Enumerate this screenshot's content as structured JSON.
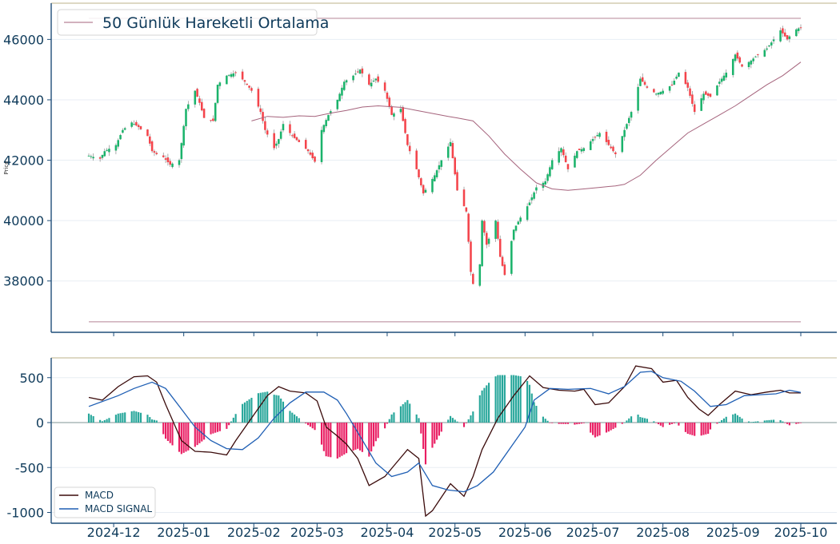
{
  "chart_data": [
    {
      "type": "candlestick",
      "ylabel": "Price",
      "ylim": [
        36300,
        47200
      ],
      "yticks": [
        38000,
        40000,
        42000,
        44000,
        46000
      ],
      "legend": {
        "placement": "top-left",
        "entries": [
          "50 Günlük Hareketli Ortalama"
        ]
      },
      "grid": true,
      "start_date": "2024-11-20",
      "end_date": "2025-10-01",
      "close_path": [
        [
          "2024-11-20",
          42150
        ],
        [
          "2024-11-25",
          42050
        ],
        [
          "2024-11-27",
          42300
        ],
        [
          "2024-12-02",
          42500
        ],
        [
          "2024-12-05",
          43000
        ],
        [
          "2024-12-09",
          43250
        ],
        [
          "2024-12-12",
          43100
        ],
        [
          "2024-12-16",
          42800
        ],
        [
          "2024-12-18",
          42300
        ],
        [
          "2024-12-20",
          42200
        ],
        [
          "2024-12-23",
          42100
        ],
        [
          "2024-12-26",
          41850
        ],
        [
          "2024-12-30",
          42000
        ],
        [
          "2025-01-02",
          43700
        ],
        [
          "2025-01-06",
          44300
        ],
        [
          "2025-01-08",
          43900
        ],
        [
          "2025-01-10",
          43400
        ],
        [
          "2025-01-14",
          43300
        ],
        [
          "2025-01-16",
          44500
        ],
        [
          "2025-01-20",
          44800
        ],
        [
          "2025-01-24",
          44900
        ],
        [
          "2025-01-28",
          44600
        ],
        [
          "2025-01-31",
          44300
        ],
        [
          "2025-02-04",
          43600
        ],
        [
          "2025-02-06",
          43000
        ],
        [
          "2025-02-10",
          42400
        ],
        [
          "2025-02-12",
          42700
        ],
        [
          "2025-02-14",
          43200
        ],
        [
          "2025-02-18",
          42800
        ],
        [
          "2025-02-21",
          42600
        ],
        [
          "2025-02-25",
          42300
        ],
        [
          "2025-02-28",
          41950
        ],
        [
          "2025-03-03",
          43000
        ],
        [
          "2025-03-06",
          43500
        ],
        [
          "2025-03-10",
          44000
        ],
        [
          "2025-03-13",
          44600
        ],
        [
          "2025-03-17",
          44800
        ],
        [
          "2025-03-20",
          45000
        ],
        [
          "2025-03-24",
          44500
        ],
        [
          "2025-03-27",
          44700
        ],
        [
          "2025-03-31",
          44300
        ],
        [
          "2025-04-03",
          43500
        ],
        [
          "2025-04-07",
          43700
        ],
        [
          "2025-04-10",
          42500
        ],
        [
          "2025-04-14",
          41700
        ],
        [
          "2025-04-17",
          40900
        ],
        [
          "2025-04-22",
          41500
        ],
        [
          "2025-04-25",
          42000
        ],
        [
          "2025-04-29",
          42600
        ],
        [
          "2025-05-02",
          41000
        ],
        [
          "2025-05-06",
          40300
        ],
        [
          "2025-05-08",
          38300
        ],
        [
          "2025-05-11",
          37100
        ],
        [
          "2025-05-13",
          40000
        ],
        [
          "2025-05-15",
          39200
        ],
        [
          "2025-05-19",
          40000
        ],
        [
          "2025-05-21",
          38800
        ],
        [
          "2025-05-23",
          38200
        ],
        [
          "2025-05-27",
          39700
        ],
        [
          "2025-05-30",
          40100
        ],
        [
          "2025-06-03",
          40600
        ],
        [
          "2025-06-06",
          41100
        ],
        [
          "2025-06-10",
          41300
        ],
        [
          "2025-06-13",
          42000
        ],
        [
          "2025-06-17",
          42400
        ],
        [
          "2025-06-20",
          41700
        ],
        [
          "2025-06-24",
          42300
        ],
        [
          "2025-06-27",
          42400
        ],
        [
          "2025-07-01",
          42700
        ],
        [
          "2025-07-04",
          42900
        ],
        [
          "2025-07-08",
          42500
        ],
        [
          "2025-07-11",
          42200
        ],
        [
          "2025-07-15",
          43000
        ],
        [
          "2025-07-18",
          43600
        ],
        [
          "2025-07-22",
          44700
        ],
        [
          "2025-07-25",
          44400
        ],
        [
          "2025-07-29",
          44200
        ],
        [
          "2025-08-01",
          44300
        ],
        [
          "2025-08-05",
          44500
        ],
        [
          "2025-08-08",
          44900
        ],
        [
          "2025-08-12",
          44400
        ],
        [
          "2025-08-15",
          43600
        ],
        [
          "2025-08-19",
          44200
        ],
        [
          "2025-08-22",
          44100
        ],
        [
          "2025-08-26",
          44600
        ],
        [
          "2025-08-29",
          44900
        ],
        [
          "2025-09-02",
          45500
        ],
        [
          "2025-09-05",
          45100
        ],
        [
          "2025-09-09",
          45300
        ],
        [
          "2025-09-12",
          45500
        ],
        [
          "2025-09-16",
          45700
        ],
        [
          "2025-09-19",
          46000
        ],
        [
          "2025-09-22",
          46300
        ],
        [
          "2025-09-25",
          46000
        ],
        [
          "2025-09-28",
          46300
        ],
        [
          "2025-10-01",
          46400
        ]
      ],
      "sma50_path": [
        [
          "2025-01-31",
          43300
        ],
        [
          "2025-02-07",
          43450
        ],
        [
          "2025-02-14",
          43420
        ],
        [
          "2025-02-21",
          43470
        ],
        [
          "2025-02-28",
          43450
        ],
        [
          "2025-03-07",
          43560
        ],
        [
          "2025-03-14",
          43650
        ],
        [
          "2025-03-21",
          43760
        ],
        [
          "2025-03-28",
          43800
        ],
        [
          "2025-04-07",
          43750
        ],
        [
          "2025-04-14",
          43650
        ],
        [
          "2025-04-21",
          43550
        ],
        [
          "2025-04-28",
          43450
        ],
        [
          "2025-05-02",
          43400
        ],
        [
          "2025-05-09",
          43300
        ],
        [
          "2025-05-16",
          42800
        ],
        [
          "2025-05-23",
          42200
        ],
        [
          "2025-05-30",
          41700
        ],
        [
          "2025-06-06",
          41250
        ],
        [
          "2025-06-13",
          41050
        ],
        [
          "2025-06-20",
          41000
        ],
        [
          "2025-06-27",
          41050
        ],
        [
          "2025-07-04",
          41100
        ],
        [
          "2025-07-11",
          41150
        ],
        [
          "2025-07-15",
          41200
        ],
        [
          "2025-07-22",
          41500
        ],
        [
          "2025-07-29",
          42000
        ],
        [
          "2025-08-05",
          42450
        ],
        [
          "2025-08-12",
          42900
        ],
        [
          "2025-08-19",
          43200
        ],
        [
          "2025-08-26",
          43500
        ],
        [
          "2025-09-02",
          43800
        ],
        [
          "2025-09-09",
          44150
        ],
        [
          "2025-09-16",
          44500
        ],
        [
          "2025-09-23",
          44800
        ],
        [
          "2025-10-01",
          45250
        ]
      ],
      "hlines": [
        46700,
        36650
      ]
    },
    {
      "type": "line+bar",
      "ylim": [
        -1120,
        720
      ],
      "yticks": [
        -1000,
        -500,
        0,
        500
      ],
      "xticks": [
        "2024-12",
        "2025-01",
        "2025-02",
        "2025-03",
        "2025-04",
        "2025-05",
        "2025-06",
        "2025-07",
        "2025-08",
        "2025-09",
        "2025-10"
      ],
      "legend": {
        "placement": "bottom-left",
        "entries": [
          "MACD",
          "MACD SIGNAL"
        ]
      },
      "grid": true,
      "series": [
        {
          "name": "MACD",
          "color": "#3b0b0b",
          "path": [
            [
              "2024-11-20",
              280
            ],
            [
              "2024-11-26",
              250
            ],
            [
              "2024-12-03",
              400
            ],
            [
              "2024-12-10",
              510
            ],
            [
              "2024-12-16",
              520
            ],
            [
              "2024-12-20",
              450
            ],
            [
              "2024-12-24",
              200
            ],
            [
              "2024-12-31",
              -200
            ],
            [
              "2025-01-06",
              -320
            ],
            [
              "2025-01-13",
              -330
            ],
            [
              "2025-01-20",
              -360
            ],
            [
              "2025-01-24",
              -200
            ],
            [
              "2025-01-31",
              50
            ],
            [
              "2025-02-07",
              300
            ],
            [
              "2025-02-12",
              400
            ],
            [
              "2025-02-17",
              350
            ],
            [
              "2025-02-24",
              330
            ],
            [
              "2025-03-01",
              240
            ],
            [
              "2025-03-05",
              -50
            ],
            [
              "2025-03-10",
              -150
            ],
            [
              "2025-03-14",
              -240
            ],
            [
              "2025-03-19",
              -400
            ],
            [
              "2025-03-24",
              -700
            ],
            [
              "2025-03-31",
              -600
            ],
            [
              "2025-04-04",
              -480
            ],
            [
              "2025-04-10",
              -300
            ],
            [
              "2025-04-15",
              -400
            ],
            [
              "2025-04-18",
              -1040
            ],
            [
              "2025-04-21",
              -980
            ],
            [
              "2025-04-25",
              -830
            ],
            [
              "2025-04-29",
              -680
            ],
            [
              "2025-05-05",
              -820
            ],
            [
              "2025-05-09",
              -600
            ],
            [
              "2025-05-13",
              -300
            ],
            [
              "2025-05-20",
              50
            ],
            [
              "2025-05-27",
              300
            ],
            [
              "2025-06-03",
              520
            ],
            [
              "2025-06-09",
              390
            ],
            [
              "2025-06-16",
              360
            ],
            [
              "2025-06-23",
              350
            ],
            [
              "2025-06-27",
              370
            ],
            [
              "2025-07-02",
              200
            ],
            [
              "2025-07-08",
              220
            ],
            [
              "2025-07-15",
              400
            ],
            [
              "2025-07-20",
              630
            ],
            [
              "2025-07-27",
              600
            ],
            [
              "2025-08-01",
              450
            ],
            [
              "2025-08-07",
              470
            ],
            [
              "2025-08-12",
              280
            ],
            [
              "2025-08-17",
              150
            ],
            [
              "2025-08-21",
              80
            ],
            [
              "2025-08-26",
              200
            ],
            [
              "2025-09-02",
              350
            ],
            [
              "2025-09-09",
              310
            ],
            [
              "2025-09-16",
              340
            ],
            [
              "2025-09-22",
              360
            ],
            [
              "2025-09-26",
              330
            ],
            [
              "2025-10-01",
              330
            ]
          ]
        },
        {
          "name": "MACD SIGNAL",
          "color": "#1f5fb4",
          "path": [
            [
              "2024-11-20",
              180
            ],
            [
              "2024-12-03",
              300
            ],
            [
              "2024-12-10",
              380
            ],
            [
              "2024-12-18",
              450
            ],
            [
              "2024-12-24",
              380
            ],
            [
              "2024-12-31",
              150
            ],
            [
              "2025-01-06",
              -50
            ],
            [
              "2025-01-13",
              -200
            ],
            [
              "2025-01-20",
              -290
            ],
            [
              "2025-01-27",
              -300
            ],
            [
              "2025-02-03",
              -170
            ],
            [
              "2025-02-10",
              50
            ],
            [
              "2025-02-17",
              220
            ],
            [
              "2025-02-24",
              340
            ],
            [
              "2025-03-04",
              340
            ],
            [
              "2025-03-10",
              250
            ],
            [
              "2025-03-14",
              100
            ],
            [
              "2025-03-20",
              -150
            ],
            [
              "2025-03-27",
              -450
            ],
            [
              "2025-04-03",
              -600
            ],
            [
              "2025-04-10",
              -550
            ],
            [
              "2025-04-15",
              -450
            ],
            [
              "2025-04-21",
              -700
            ],
            [
              "2025-04-28",
              -750
            ],
            [
              "2025-05-05",
              -770
            ],
            [
              "2025-05-11",
              -700
            ],
            [
              "2025-05-18",
              -550
            ],
            [
              "2025-05-25",
              -300
            ],
            [
              "2025-06-01",
              -50
            ],
            [
              "2025-06-05",
              250
            ],
            [
              "2025-06-12",
              380
            ],
            [
              "2025-06-20",
              370
            ],
            [
              "2025-06-30",
              380
            ],
            [
              "2025-07-08",
              320
            ],
            [
              "2025-07-15",
              400
            ],
            [
              "2025-07-22",
              560
            ],
            [
              "2025-07-27",
              570
            ],
            [
              "2025-08-01",
              500
            ],
            [
              "2025-08-09",
              460
            ],
            [
              "2025-08-15",
              350
            ],
            [
              "2025-08-22",
              180
            ],
            [
              "2025-08-29",
              200
            ],
            [
              "2025-09-06",
              300
            ],
            [
              "2025-09-13",
              310
            ],
            [
              "2025-09-20",
              320
            ],
            [
              "2025-09-26",
              360
            ],
            [
              "2025-10-01",
              335
            ]
          ]
        }
      ],
      "histogram": {
        "colors": {
          "positive": "#26a69a",
          "negative": "#e91e63"
        }
      }
    }
  ],
  "colors": {
    "up": "#1bb36b",
    "down": "#f4444b",
    "sma": "#a5637c",
    "hline": "#c9a6b2",
    "text": "#0e3a5a",
    "axis": "#1f4e79",
    "grid": "#e8eef4",
    "hist_positive": "#26a69a",
    "hist_negative": "#e91e63"
  }
}
